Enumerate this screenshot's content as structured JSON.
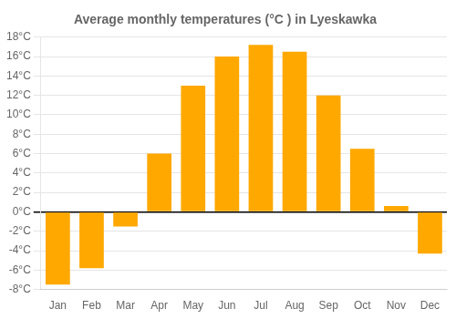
{
  "chart_data": {
    "type": "bar",
    "title": "Average monthly temperatures (°C ) in Lyeskawka",
    "categories": [
      "Jan",
      "Feb",
      "Mar",
      "Apr",
      "May",
      "Jun",
      "Jul",
      "Aug",
      "Sep",
      "Oct",
      "Nov",
      "Dec"
    ],
    "values": [
      -7.5,
      -5.8,
      -1.5,
      6.0,
      13.0,
      16.0,
      17.2,
      16.5,
      12.0,
      6.5,
      0.6,
      -4.3
    ],
    "color": "#FFA800",
    "ylim": [
      -8,
      18
    ],
    "yticks": [
      {
        "value": -8,
        "label": "-8°C"
      },
      {
        "value": -6,
        "label": "-6°C"
      },
      {
        "value": -4,
        "label": "-4°C"
      },
      {
        "value": -2,
        "label": "-2°C"
      },
      {
        "value": 0,
        "label": "0°C"
      },
      {
        "value": 2,
        "label": "2°C"
      },
      {
        "value": 4,
        "label": "4°C"
      },
      {
        "value": 6,
        "label": "6°C"
      },
      {
        "value": 8,
        "label": "8°C"
      },
      {
        "value": 10,
        "label": "10°C"
      },
      {
        "value": 12,
        "label": "12°C"
      },
      {
        "value": 14,
        "label": "14°C"
      },
      {
        "value": 16,
        "label": "16°C"
      },
      {
        "value": 18,
        "label": "18°C"
      }
    ],
    "grid": true
  }
}
